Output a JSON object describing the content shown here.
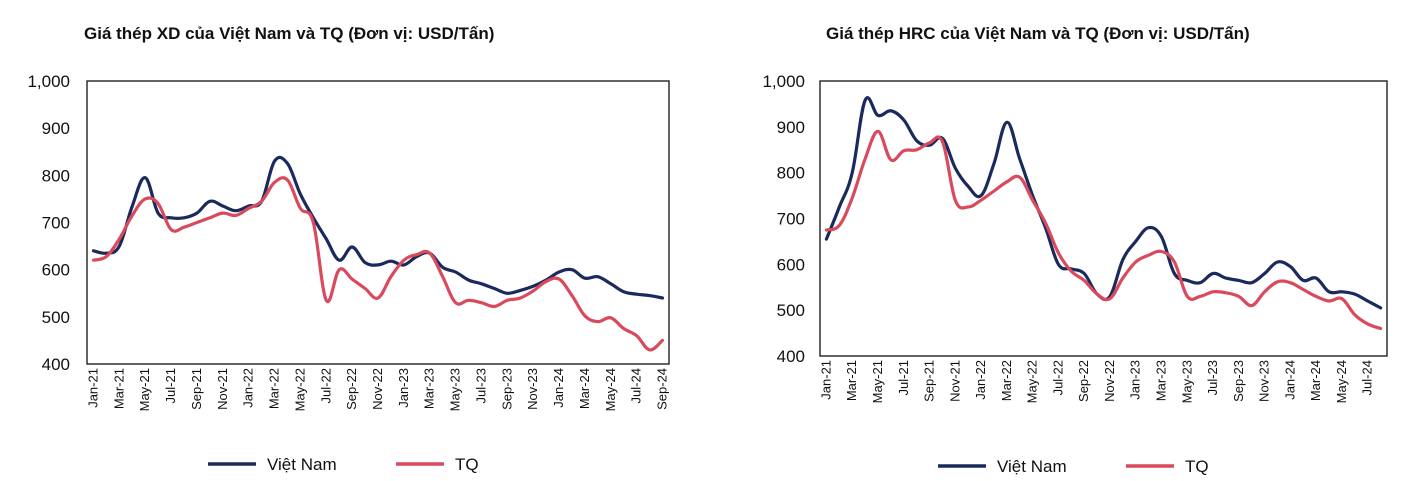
{
  "chart_data": [
    {
      "type": "line",
      "title": "Giá thép XD của Việt Nam và TQ (Đơn vị: USD/Tấn)",
      "xlabel": "",
      "ylabel": "",
      "ylim": [
        400,
        1000
      ],
      "yticks": [
        "1,000",
        "900",
        "800",
        "700",
        "600",
        "500",
        "400"
      ],
      "ytick_values": [
        1000,
        900,
        800,
        700,
        600,
        500,
        400
      ],
      "x_count": 45,
      "x_ticks": [
        {
          "i": 0,
          "label": "Jan-21"
        },
        {
          "i": 2,
          "label": "Mar-21"
        },
        {
          "i": 4,
          "label": "May-21"
        },
        {
          "i": 6,
          "label": "Jul-21"
        },
        {
          "i": 8,
          "label": "Sep-21"
        },
        {
          "i": 10,
          "label": "Nov-21"
        },
        {
          "i": 12,
          "label": "Jan-22"
        },
        {
          "i": 14,
          "label": "Mar-22"
        },
        {
          "i": 16,
          "label": "May-22"
        },
        {
          "i": 18,
          "label": "Jul-22"
        },
        {
          "i": 20,
          "label": "Sep-22"
        },
        {
          "i": 22,
          "label": "Nov-22"
        },
        {
          "i": 24,
          "label": "Jan-23"
        },
        {
          "i": 26,
          "label": "Mar-23"
        },
        {
          "i": 28,
          "label": "May-23"
        },
        {
          "i": 30,
          "label": "Jul-23"
        },
        {
          "i": 32,
          "label": "Sep-23"
        },
        {
          "i": 34,
          "label": "Nov-23"
        },
        {
          "i": 36,
          "label": "Jan-24"
        },
        {
          "i": 38,
          "label": "Mar-24"
        },
        {
          "i": 40,
          "label": "May-24"
        },
        {
          "i": 42,
          "label": "Jul-24"
        },
        {
          "i": 44,
          "label": "Sep-24"
        }
      ],
      "series": [
        {
          "name": "Việt Nam",
          "color": "#1b2a5c",
          "values": [
            640,
            635,
            650,
            735,
            795,
            720,
            710,
            710,
            720,
            745,
            735,
            725,
            735,
            745,
            830,
            825,
            760,
            710,
            665,
            620,
            648,
            615,
            610,
            618,
            610,
            628,
            635,
            605,
            595,
            578,
            570,
            560,
            550,
            556,
            565,
            578,
            595,
            600,
            582,
            585,
            570,
            553,
            548,
            545,
            540
          ]
        },
        {
          "name": "TQ",
          "color": "#d94a5c",
          "values": [
            620,
            628,
            665,
            715,
            750,
            740,
            685,
            690,
            700,
            710,
            720,
            715,
            730,
            745,
            785,
            790,
            730,
            700,
            535,
            600,
            580,
            560,
            540,
            585,
            620,
            632,
            635,
            585,
            530,
            535,
            530,
            522,
            535,
            540,
            555,
            575,
            580,
            545,
            502,
            490,
            498,
            475,
            460,
            430,
            450
          ]
        }
      ]
    },
    {
      "type": "line",
      "title": "Giá thép HRC của Việt Nam và TQ (Đơn vị: USD/Tấn)",
      "xlabel": "",
      "ylabel": "",
      "ylim": [
        400,
        1000
      ],
      "yticks": [
        "1,000",
        "900",
        "800",
        "700",
        "600",
        "500",
        "400"
      ],
      "ytick_values": [
        1000,
        900,
        800,
        700,
        600,
        500,
        400
      ],
      "x_count": 44,
      "x_ticks": [
        {
          "i": 0,
          "label": "Jan-21"
        },
        {
          "i": 2,
          "label": "Mar-21"
        },
        {
          "i": 4,
          "label": "May-21"
        },
        {
          "i": 6,
          "label": "Jul-21"
        },
        {
          "i": 8,
          "label": "Sep-21"
        },
        {
          "i": 10,
          "label": "Nov-21"
        },
        {
          "i": 12,
          "label": "Jan-22"
        },
        {
          "i": 14,
          "label": "Mar-22"
        },
        {
          "i": 16,
          "label": "May-22"
        },
        {
          "i": 18,
          "label": "Jul-22"
        },
        {
          "i": 20,
          "label": "Sep-22"
        },
        {
          "i": 22,
          "label": "Nov-22"
        },
        {
          "i": 24,
          "label": "Jan-23"
        },
        {
          "i": 26,
          "label": "Mar-23"
        },
        {
          "i": 28,
          "label": "May-23"
        },
        {
          "i": 30,
          "label": "Jul-23"
        },
        {
          "i": 32,
          "label": "Sep-23"
        },
        {
          "i": 34,
          "label": "Nov-23"
        },
        {
          "i": 36,
          "label": "Jan-24"
        },
        {
          "i": 38,
          "label": "Mar-24"
        },
        {
          "i": 40,
          "label": "May-24"
        },
        {
          "i": 42,
          "label": "Jul-24"
        }
      ],
      "series": [
        {
          "name": "Việt Nam",
          "color": "#1b2a5c",
          "values": [
            655,
            725,
            800,
            958,
            925,
            935,
            915,
            870,
            860,
            875,
            810,
            770,
            750,
            820,
            910,
            830,
            750,
            680,
            600,
            590,
            580,
            535,
            530,
            610,
            650,
            680,
            660,
            580,
            565,
            560,
            580,
            570,
            565,
            560,
            580,
            605,
            595,
            565,
            570,
            540,
            540,
            535,
            520,
            505
          ]
        },
        {
          "name": "TQ",
          "color": "#d94a5c",
          "values": [
            675,
            685,
            745,
            830,
            890,
            828,
            848,
            850,
            865,
            868,
            740,
            725,
            740,
            760,
            780,
            790,
            740,
            690,
            625,
            585,
            565,
            535,
            525,
            570,
            605,
            620,
            628,
            605,
            530,
            530,
            540,
            538,
            530,
            510,
            540,
            562,
            560,
            545,
            530,
            520,
            525,
            490,
            470,
            460
          ]
        }
      ]
    }
  ],
  "legend": {
    "vn": "Việt Nam",
    "tq": "TQ"
  }
}
